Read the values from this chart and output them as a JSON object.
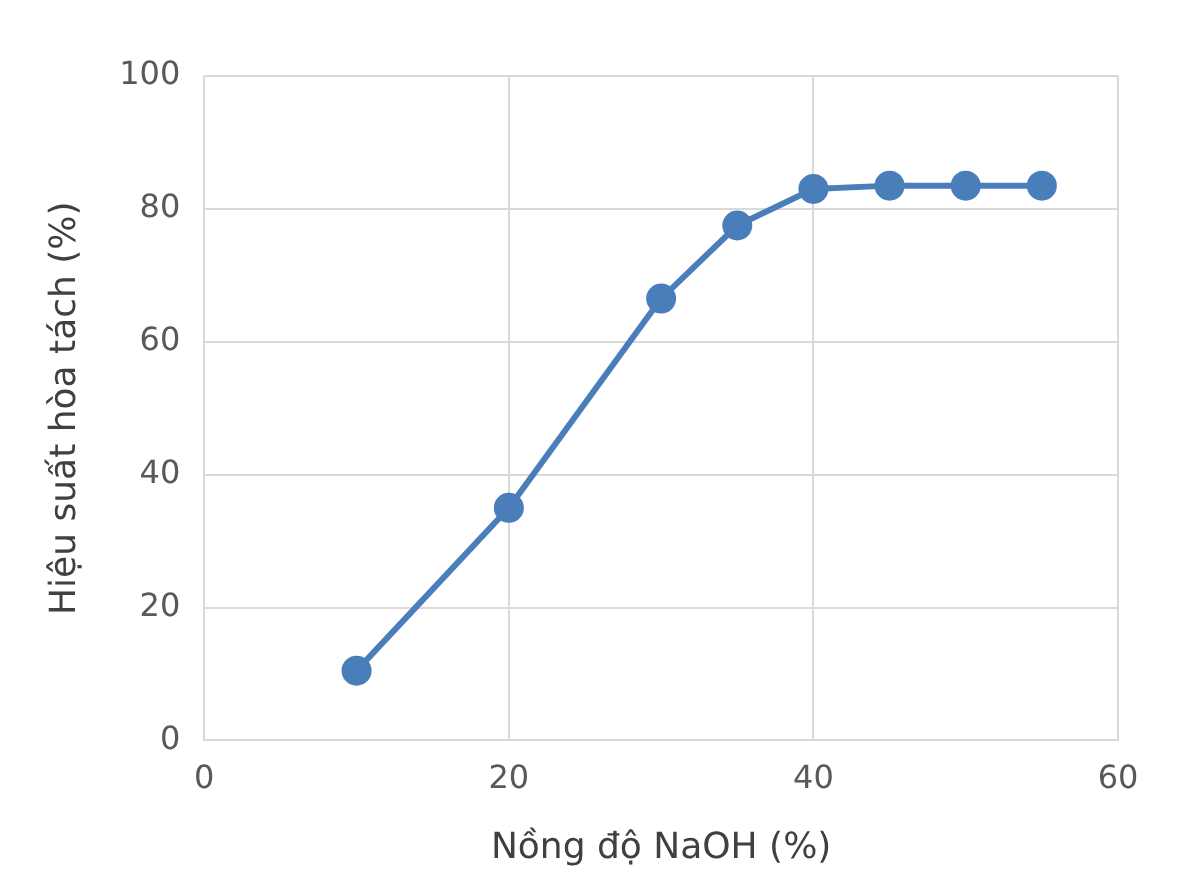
{
  "chart_data": {
    "type": "line",
    "xlabel": "Nồng độ NaOH (%)",
    "ylabel": "Hiệu suất hòa tách (%)",
    "x": [
      10,
      20,
      30,
      35,
      40,
      45,
      50,
      55
    ],
    "series": [
      {
        "color": "#4a7ebb",
        "values": [
          10.5,
          35,
          66.5,
          77.5,
          83,
          83.5,
          83.5,
          83.5
        ]
      }
    ],
    "xlim": [
      0,
      60
    ],
    "xticks": [
      0,
      20,
      40,
      60
    ],
    "ylim": [
      0,
      100
    ],
    "yticks": [
      0,
      20,
      40,
      60,
      80,
      100
    ],
    "grid": true,
    "marker": "circle",
    "line_style": "solid"
  }
}
